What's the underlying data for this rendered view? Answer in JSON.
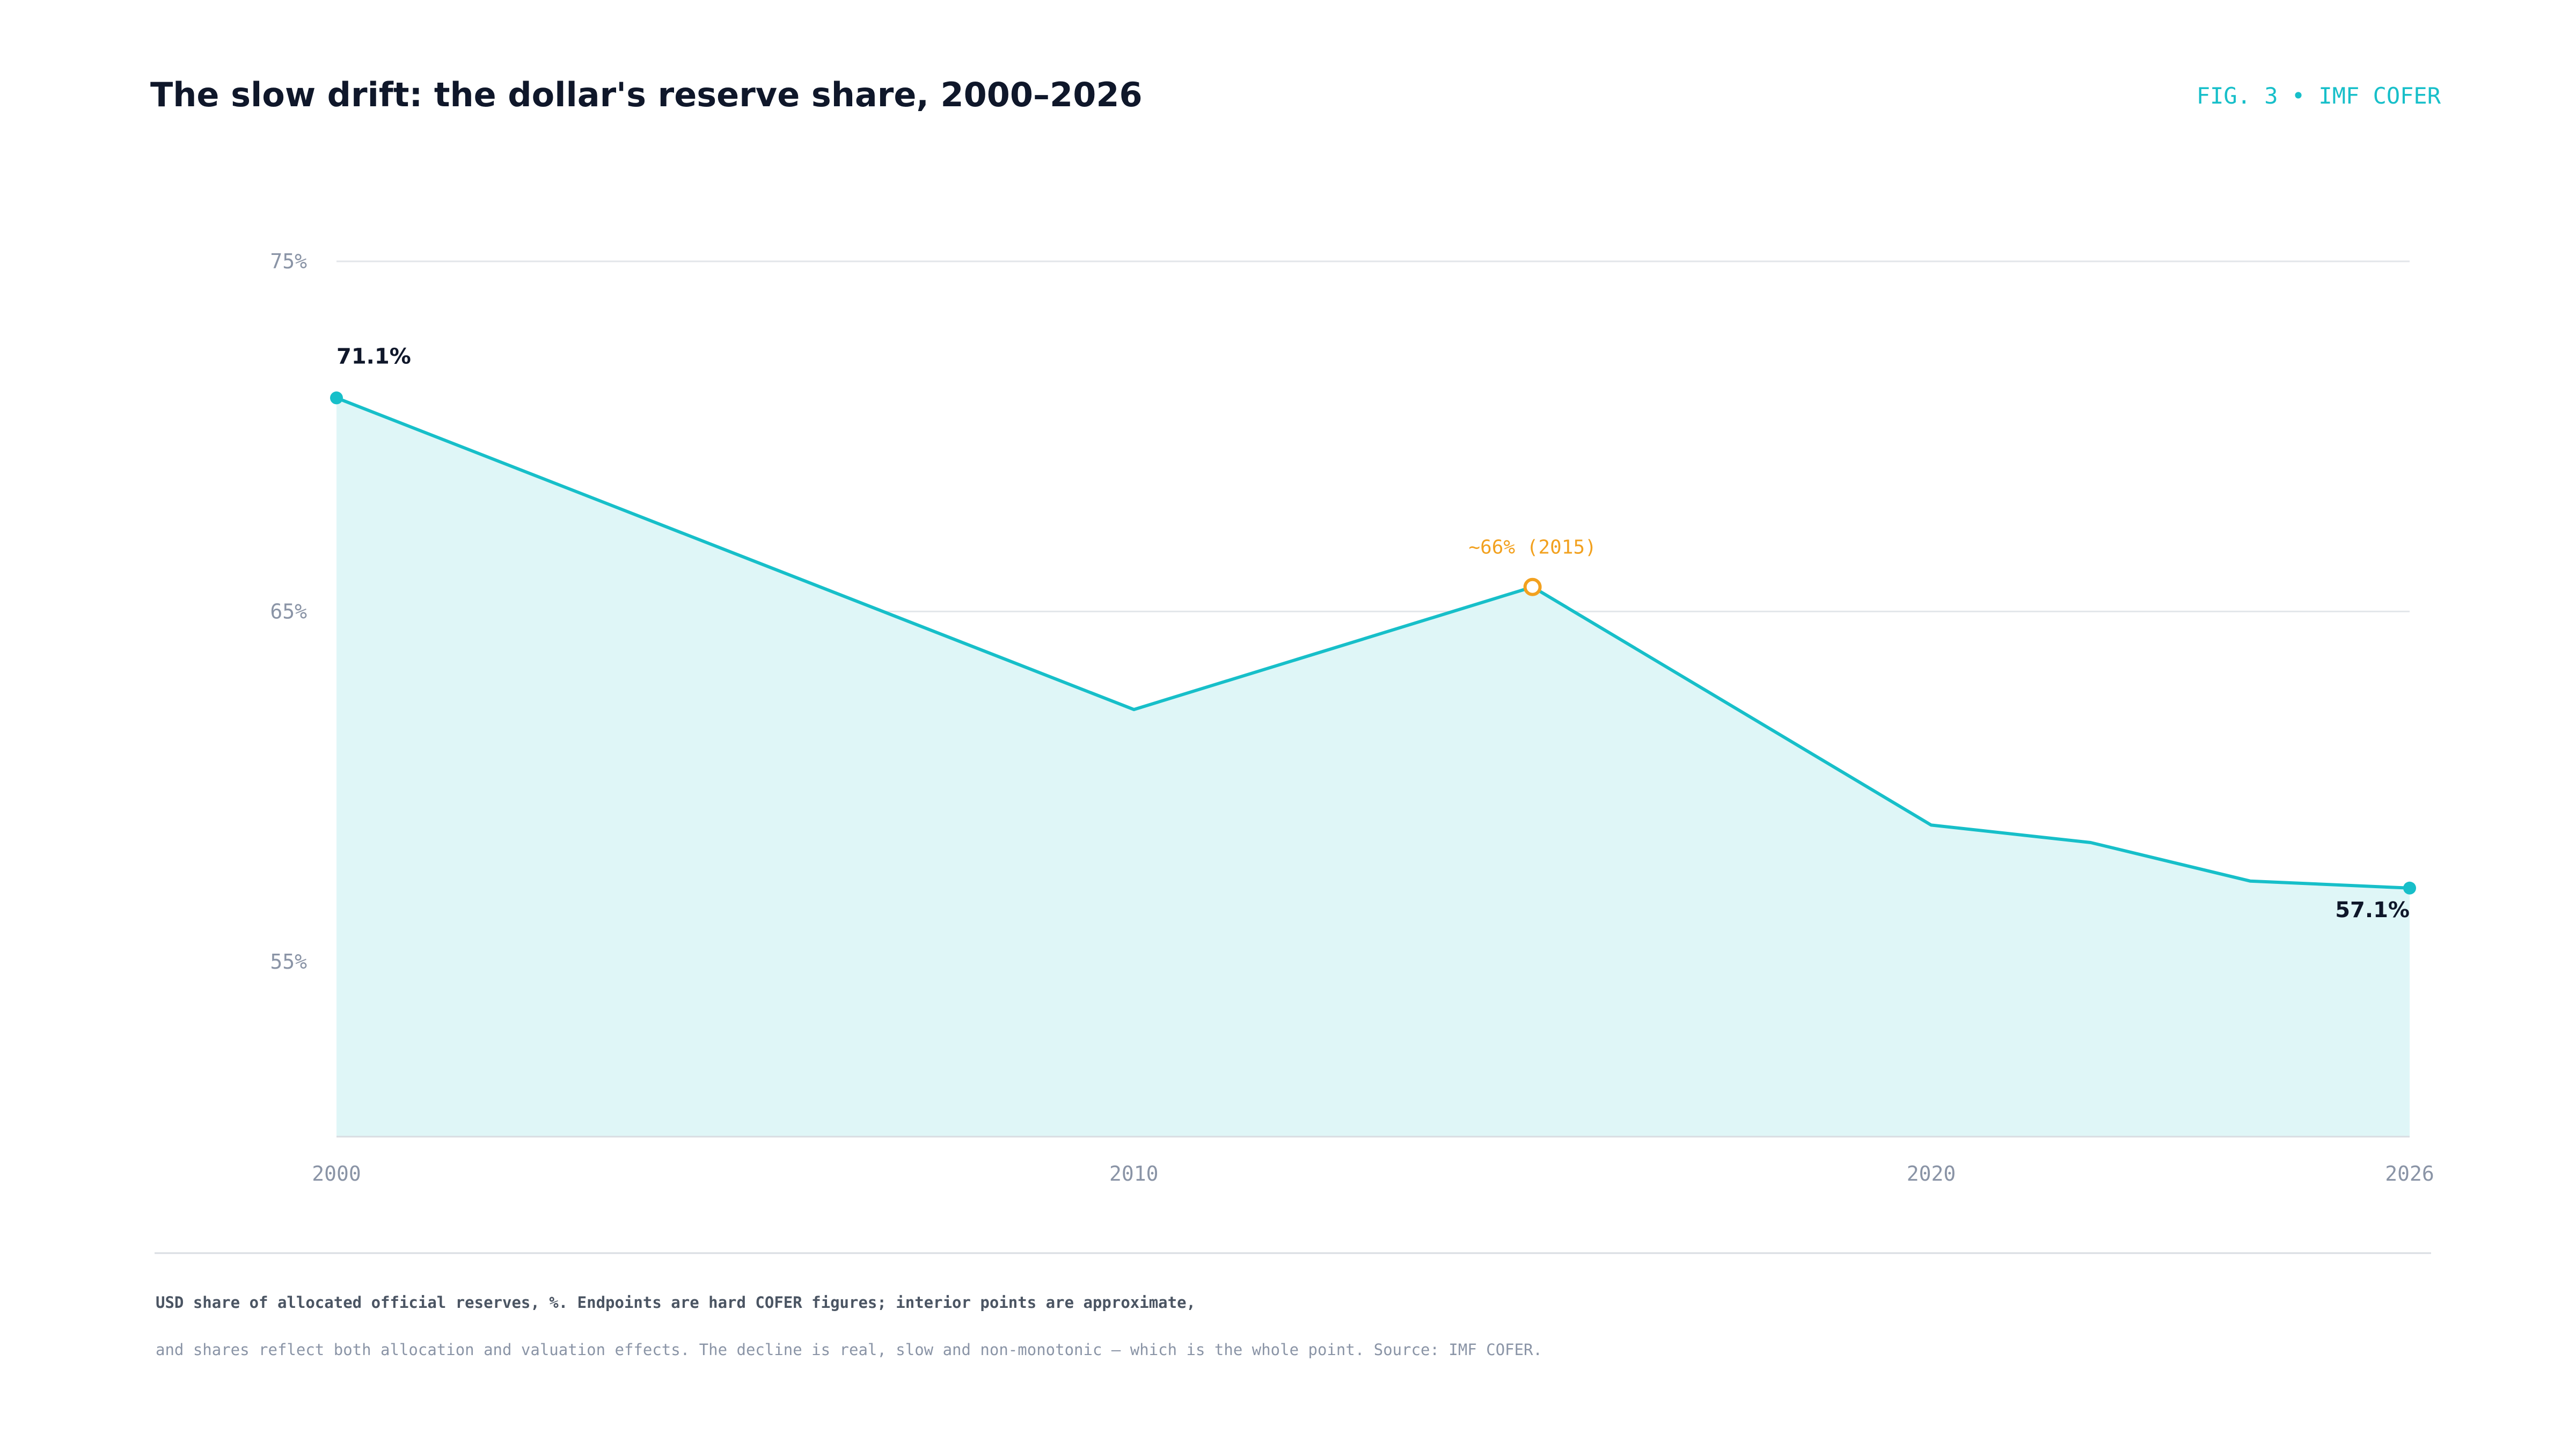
{
  "header": {
    "title": "The slow drift: the dollar's reserve share, 2000–2026",
    "fig_tag": "FIG. 3 • IMF COFER"
  },
  "chart_data": {
    "type": "area",
    "x": [
      2000,
      2010,
      2015,
      2020,
      2022,
      2024,
      2026
    ],
    "values": [
      71.1,
      62.2,
      65.7,
      58.9,
      58.4,
      57.3,
      57.1
    ],
    "x_ticks": [
      2000,
      2010,
      2020,
      2026
    ],
    "x_tick_labels": [
      "2000",
      "2010",
      "2020",
      "2026"
    ],
    "y_ticks": [
      55,
      65,
      75
    ],
    "y_tick_labels": [
      "55%",
      "65%",
      "75%"
    ],
    "xlim": [
      2000,
      2026
    ],
    "ylim": [
      50,
      75
    ],
    "grid": true,
    "start_label": "71.1%",
    "end_label": "57.1%",
    "annotation": {
      "x": 2015,
      "y": 65.7,
      "text": "~66% (2015)"
    },
    "colors": {
      "line": "#17bfc9",
      "fill": "#dff6f7",
      "annotation": "#f2a11f",
      "grid": "#e3e6ea",
      "tick": "#8a94a6",
      "label": "#0f172a"
    }
  },
  "footer": {
    "note_line1": "USD share of allocated official reserves, %. Endpoints are hard COFER figures; interior points are approximate,",
    "note_line2": "and shares reflect both allocation and valuation effects. The decline is real, slow and non-monotonic — which is the whole point. Source: IMF COFER."
  }
}
